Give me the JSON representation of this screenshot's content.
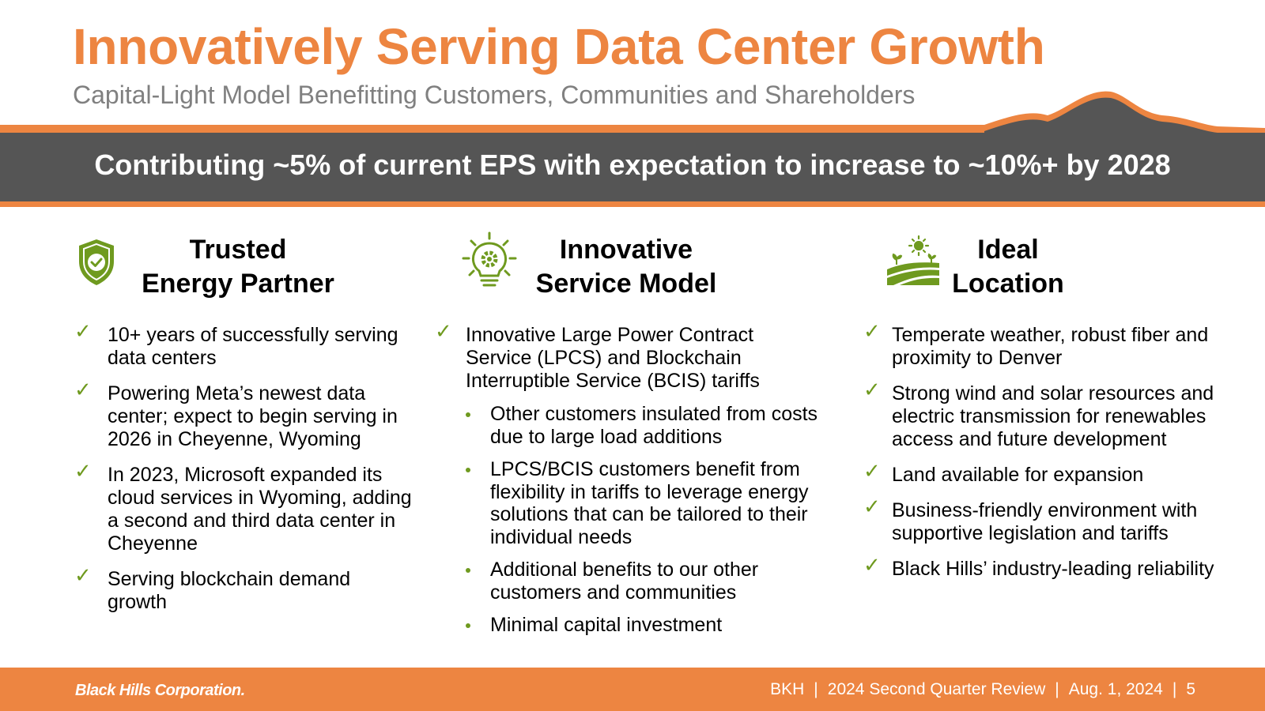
{
  "header": {
    "title": "Innovatively Serving Data Center Growth",
    "subtitle": "Capital-Light Model Benefitting Customers, Communities and Shareholders"
  },
  "banner": {
    "text": "Contributing ~5% of current EPS with expectation to increase to ~10%+ by 2028"
  },
  "columns": [
    {
      "icon": "shield-check-icon",
      "title_line1": "Trusted",
      "title_line2": "Energy Partner",
      "items": [
        "10+ years of successfully serving data centers",
        "Powering Meta’s newest data center; expect to begin serving in 2026 in Cheyenne, Wyoming",
        "In 2023, Microsoft expanded its cloud services in Wyoming, adding a second and third data center in Cheyenne",
        "Serving blockchain demand growth"
      ]
    },
    {
      "icon": "lightbulb-gear-icon",
      "title_line1": "Innovative",
      "title_line2": "Service Model",
      "items": [
        "Innovative Large Power Contract Service (LPCS) and Blockchain Interruptible Service (BCIS) tariffs"
      ],
      "sub_items": [
        "Other customers insulated from costs due to large load additions",
        "LPCS/BCIS customers benefit from flexibility in tariffs to leverage energy solutions that can be tailored to their individual needs",
        "Additional benefits to our other customers and communities",
        "Minimal capital investment"
      ]
    },
    {
      "icon": "farmland-sun-icon",
      "title_line1": "Ideal",
      "title_line2": "Location",
      "items": [
        "Temperate weather, robust fiber and proximity to Denver",
        "Strong wind and solar resources and electric transmission for renewables access and future development",
        "Land available for expansion",
        "Business-friendly environment with supportive legislation and tariffs",
        "Black Hills’ industry-leading reliability"
      ]
    }
  ],
  "footer": {
    "logo": "Black Hills Corporation.",
    "ticker": "BKH",
    "report": "2024 Second Quarter Review",
    "date": "Aug. 1, 2024",
    "page": "5",
    "separator": "|"
  },
  "colors": {
    "orange": "#ed8541",
    "gray_band": "#555555",
    "green": "#6f9a1f",
    "subtitle_gray": "#808080"
  }
}
